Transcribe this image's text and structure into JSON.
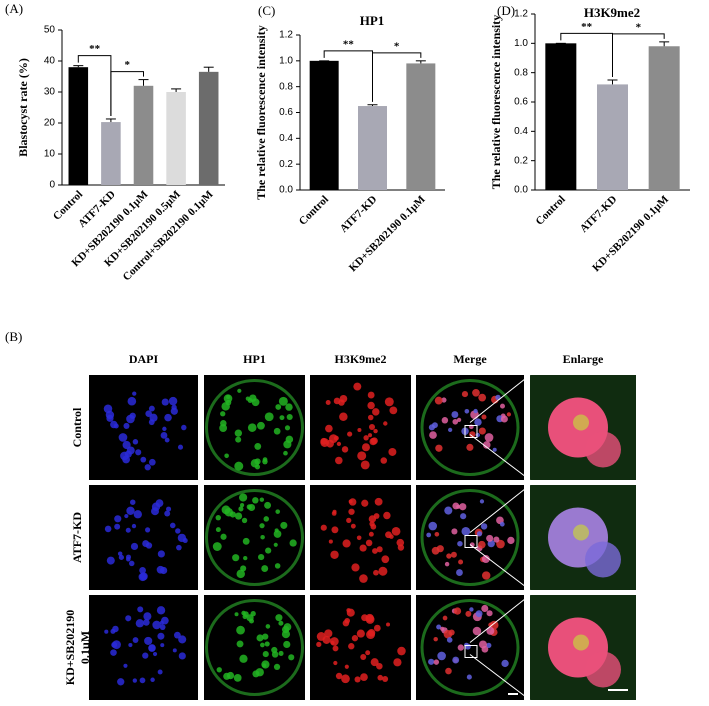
{
  "chart_data": [
    {
      "type": "bar",
      "panel_label": "(A)",
      "ylabel": "Blastocyst rate (%)",
      "categories": [
        "Control",
        "ATF7-KD",
        "KD+SB202190 0.1μM",
        "KD+SB202190 0.5μM",
        "Control+SB202190 0.1μM"
      ],
      "values": [
        38,
        20.3,
        32,
        30,
        36.5
      ],
      "errors": [
        0.5,
        1,
        2,
        1,
        1.5
      ],
      "colors": [
        "#000000",
        "#a8a8b4",
        "#8c8c8c",
        "#dcdcdc",
        "#6c6c6c"
      ],
      "ylim": [
        0,
        50
      ],
      "yticks": [
        0,
        10,
        20,
        30,
        40,
        50
      ],
      "annotations": [
        "**",
        "*"
      ]
    },
    {
      "type": "bar",
      "panel_label": "(C)",
      "title": "HP1",
      "ylabel": "The relative fluorescence intensity",
      "categories": [
        "Control",
        "ATF7-KD",
        "KD+SB202190 0.1μM"
      ],
      "values": [
        1.0,
        0.65,
        0.98
      ],
      "errors": [
        0,
        0.01,
        0.02
      ],
      "colors": [
        "#000000",
        "#a8a8b4",
        "#8c8c8c"
      ],
      "ylim": [
        0,
        1.2
      ],
      "yticks": [
        {
          "value": 0,
          "label": "0.0"
        },
        0.2,
        0.4,
        0.6,
        0.8,
        {
          "value": 1,
          "label": "1.0"
        },
        1.2
      ],
      "annotations": [
        "**",
        "*"
      ]
    },
    {
      "type": "bar",
      "panel_label": "(D)",
      "title": "H3K9me2",
      "ylabel": "The relative fluorescence intensity",
      "categories": [
        "Control",
        "ATF7-KD",
        "KD+SB202190 0.1μM"
      ],
      "values": [
        1.0,
        0.72,
        0.98
      ],
      "errors": [
        0,
        0.03,
        0.03
      ],
      "colors": [
        "#000000",
        "#a8a8b4",
        "#8c8c8c"
      ],
      "ylim": [
        0,
        1.2
      ],
      "yticks": [
        {
          "value": 0,
          "label": "0.0"
        },
        0.2,
        0.4,
        0.6,
        0.8,
        {
          "value": 1,
          "label": "1.0"
        },
        1.2
      ],
      "annotations": [
        "**",
        "*"
      ]
    }
  ],
  "images": {
    "panel_label": "(B)",
    "columns": [
      {
        "label": "DAPI",
        "color": "#2a2ad8"
      },
      {
        "label": "HP1",
        "color": "#22b422"
      },
      {
        "label": "H3K9me2",
        "color": "#e02020"
      },
      {
        "label": "Merge",
        "color": "#000000"
      },
      {
        "label": "Enlarge",
        "color": "#000000"
      }
    ],
    "rows": [
      [
        "Control"
      ],
      [
        "ATF7-KD"
      ],
      [
        "KD+SB202190",
        "0.1μM"
      ]
    ]
  }
}
